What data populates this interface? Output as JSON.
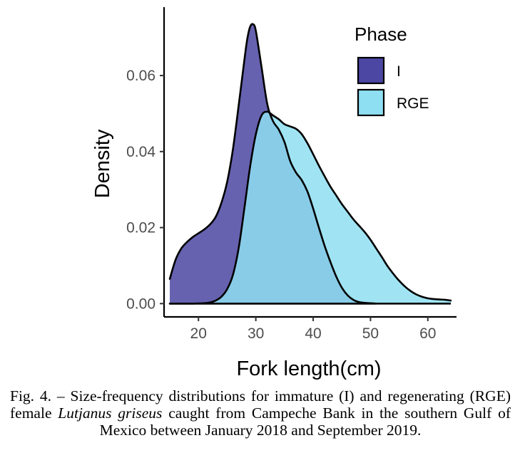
{
  "chart_data": {
    "type": "area",
    "xlabel": "Fork length(cm)",
    "ylabel": "Density",
    "xlim": [
      14,
      65
    ],
    "ylim": [
      -0.0035,
      0.078
    ],
    "xticks": [
      20,
      30,
      40,
      50,
      60
    ],
    "yticks": [
      0.0,
      0.02,
      0.04,
      0.06
    ],
    "ytick_labels": [
      "0.00",
      "0.02",
      "0.04",
      "0.06"
    ],
    "grid": false,
    "legend": {
      "title": "Phase",
      "position": "top-right"
    },
    "series": [
      {
        "name": "I",
        "color": "#4B47A2",
        "x": [
          15,
          16,
          17,
          18,
          19,
          20,
          21,
          22,
          23,
          24,
          25,
          26,
          27,
          28,
          28.5,
          29,
          29.5,
          30,
          31,
          32,
          33,
          34,
          35,
          36,
          37,
          38,
          39,
          40,
          41,
          42,
          43,
          44,
          45,
          46,
          47,
          48,
          49,
          50,
          51
        ],
        "y": [
          0.0065,
          0.0115,
          0.0145,
          0.0162,
          0.0175,
          0.0185,
          0.0195,
          0.0208,
          0.0228,
          0.0265,
          0.032,
          0.0405,
          0.052,
          0.064,
          0.0695,
          0.0728,
          0.0735,
          0.0718,
          0.0622,
          0.0525,
          0.048,
          0.0458,
          0.0425,
          0.0375,
          0.0345,
          0.0325,
          0.0295,
          0.025,
          0.02,
          0.0152,
          0.011,
          0.0072,
          0.0042,
          0.0022,
          0.001,
          0.0004,
          0.0002,
          0.0001,
          0.0
        ]
      },
      {
        "name": "RGE",
        "color": "#8FDFF2",
        "x": [
          15,
          17,
          19,
          21,
          22,
          23,
          24,
          25,
          26,
          27,
          28,
          29,
          30,
          31,
          32,
          33,
          34,
          35,
          36,
          37,
          38,
          39,
          40,
          41,
          42,
          43,
          44,
          45,
          46,
          47,
          48,
          49,
          50,
          51,
          52,
          53,
          54,
          55,
          56,
          57,
          58,
          59,
          60,
          61,
          62,
          63,
          64
        ],
        "y": [
          0.0,
          0.0,
          0.0,
          0.0001,
          0.0003,
          0.0008,
          0.0018,
          0.0038,
          0.0075,
          0.0145,
          0.025,
          0.036,
          0.0445,
          0.0495,
          0.0505,
          0.0495,
          0.0485,
          0.0472,
          0.0466,
          0.046,
          0.0446,
          0.0422,
          0.0393,
          0.0363,
          0.0335,
          0.0308,
          0.0285,
          0.0262,
          0.0242,
          0.0222,
          0.0205,
          0.0188,
          0.0168,
          0.0145,
          0.0122,
          0.0098,
          0.0078,
          0.006,
          0.0045,
          0.0033,
          0.0024,
          0.0018,
          0.0014,
          0.0012,
          0.0011,
          0.001,
          0.0008
        ]
      }
    ]
  },
  "caption": {
    "part1": "Fig. 4. – Size-frequency distributions for immature (I) and regenerating (RGE) female ",
    "species": "Lutjanus griseus",
    "part2": " caught from Campeche Bank in the southern Gulf of Mexico between January 2018 and September 2019."
  }
}
